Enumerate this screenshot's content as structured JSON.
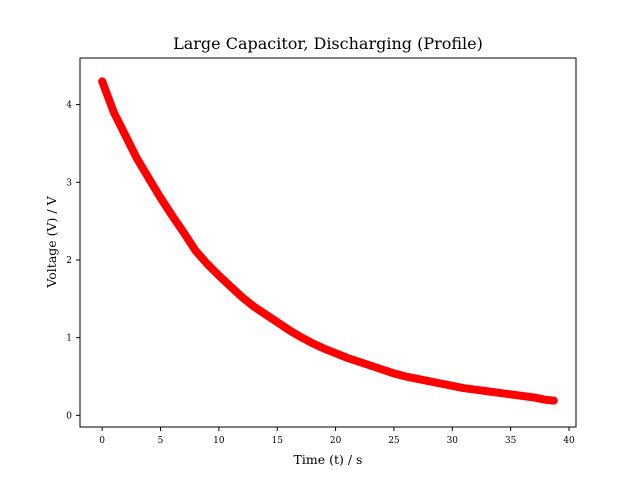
{
  "chart_data": {
    "type": "line",
    "title": "Large Capacitor, Discharging (Profile)",
    "xlabel": "Time (t) / s",
    "ylabel": "Voltage (V) / V",
    "xlim": [
      -1.9,
      40.6
    ],
    "ylim": [
      -0.15,
      4.6
    ],
    "xticks": [
      0,
      5,
      10,
      15,
      20,
      25,
      30,
      35,
      40
    ],
    "xtick_labels": [
      "0",
      "5",
      "10",
      "15",
      "20",
      "25",
      "30",
      "35",
      "40"
    ],
    "yticks": [
      0,
      1,
      2,
      3,
      4
    ],
    "ytick_labels": [
      "0",
      "1",
      "2",
      "3",
      "4"
    ],
    "grid": false,
    "legend": "none",
    "series": [
      {
        "color": "#ff0000",
        "x": [
          0,
          1,
          2,
          3,
          4,
          5,
          6,
          7,
          8,
          9,
          10,
          11,
          12,
          13,
          14,
          15,
          16,
          17,
          18,
          19,
          20,
          21,
          22,
          23,
          24,
          25,
          26,
          27,
          28,
          29,
          30,
          31,
          32,
          33,
          34,
          35,
          36,
          37,
          38,
          38.7
        ],
        "y": [
          4.3,
          3.9,
          3.6,
          3.3,
          3.05,
          2.8,
          2.57,
          2.35,
          2.12,
          1.95,
          1.8,
          1.66,
          1.52,
          1.4,
          1.3,
          1.2,
          1.1,
          1.01,
          0.93,
          0.86,
          0.8,
          0.74,
          0.69,
          0.64,
          0.59,
          0.54,
          0.5,
          0.47,
          0.44,
          0.41,
          0.38,
          0.35,
          0.33,
          0.31,
          0.29,
          0.27,
          0.25,
          0.23,
          0.2,
          0.19
        ]
      }
    ]
  }
}
